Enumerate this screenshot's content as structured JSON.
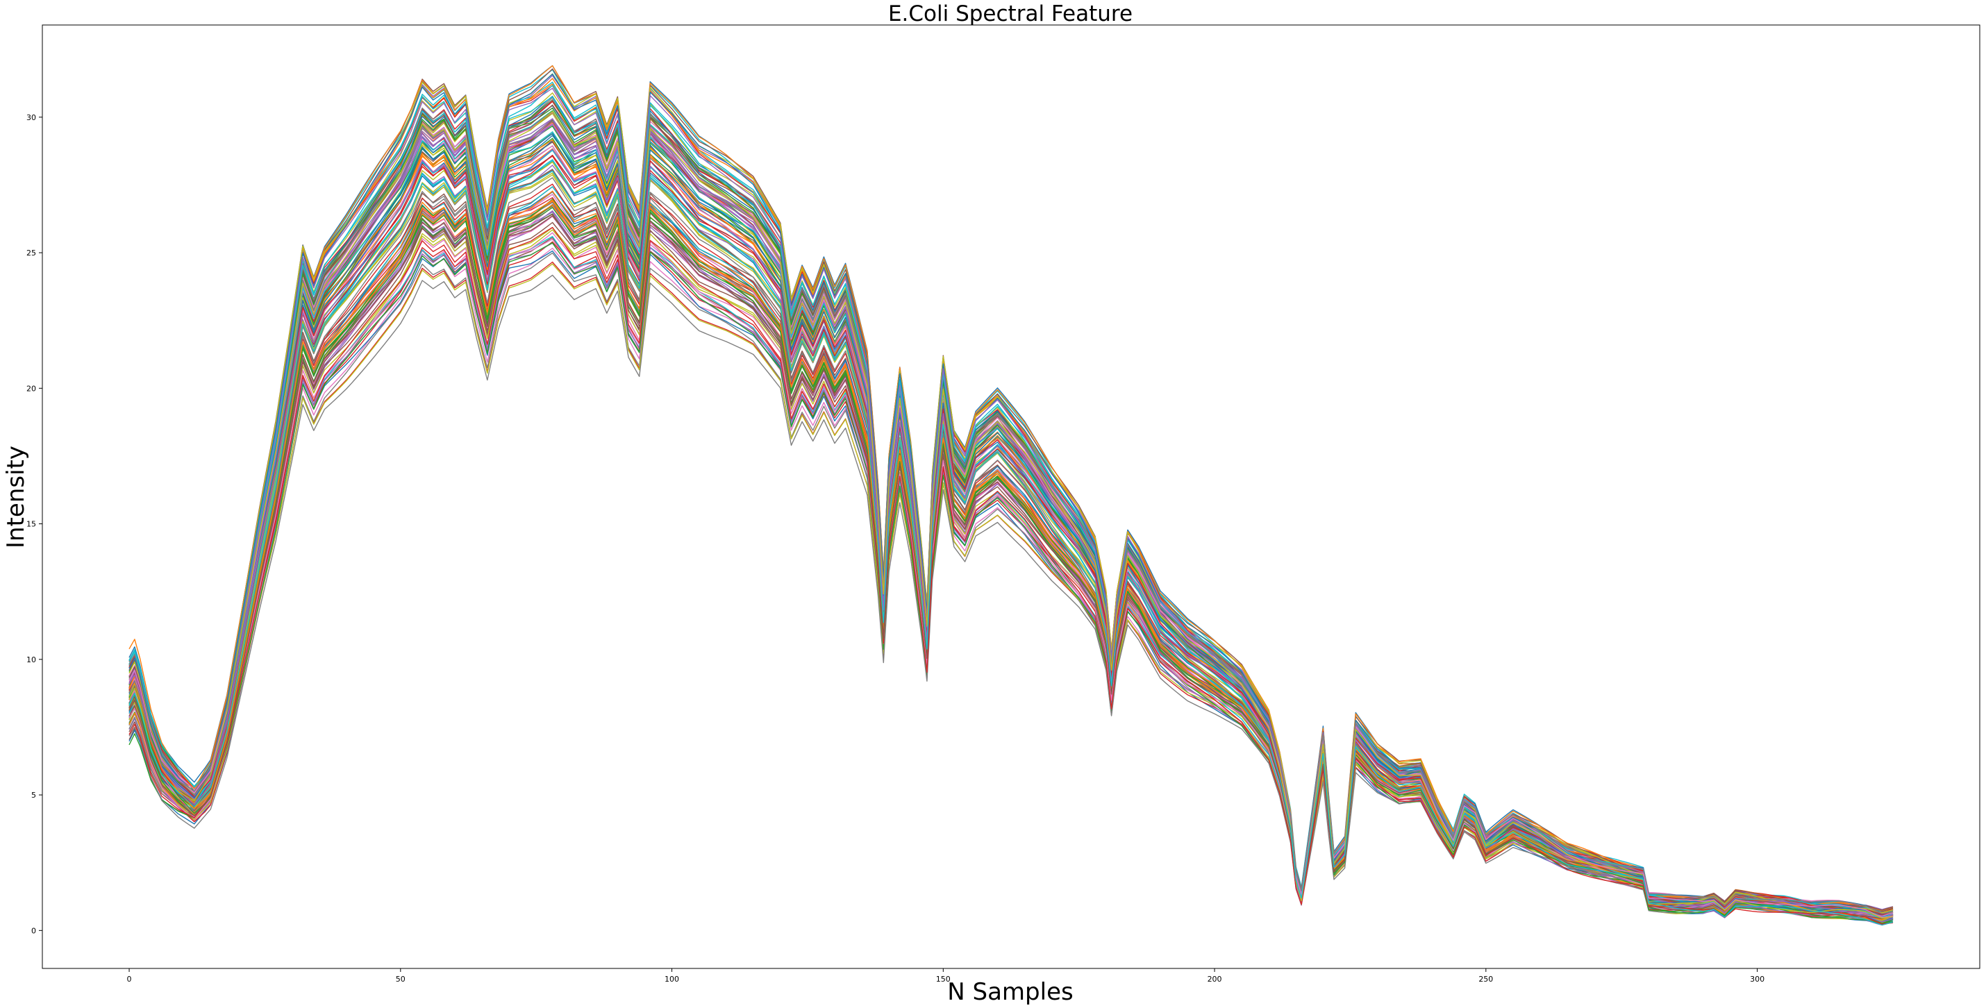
{
  "chart_data": {
    "type": "line",
    "title": "E.Coli Spectral Feature",
    "xlabel": "N Samples",
    "ylabel": "Intensity",
    "xlim": [
      -16,
      341
    ],
    "ylim": [
      -1.4,
      33.4
    ],
    "xticks": [
      0,
      50,
      100,
      150,
      200,
      250,
      300
    ],
    "yticks": [
      0,
      5,
      10,
      15,
      20,
      25,
      30
    ],
    "grid": false,
    "legend": "none",
    "n_points_per_series": 326,
    "x_range": [
      0,
      325
    ],
    "colors": [
      "#1f77b4",
      "#ff7f0e",
      "#2ca02c",
      "#d62728",
      "#9467bd",
      "#8c564b",
      "#e377c2",
      "#7f7f7f",
      "#bcbd22",
      "#17becf"
    ],
    "reference_curve": {
      "x": [
        0,
        1,
        2,
        4,
        6,
        9,
        12,
        15,
        18,
        21,
        24,
        27,
        30,
        32,
        34,
        36,
        40,
        45,
        50,
        52,
        54,
        56,
        58,
        60,
        62,
        64,
        66,
        68,
        70,
        74,
        78,
        82,
        86,
        88,
        90,
        92,
        94,
        96,
        100,
        105,
        110,
        115,
        120,
        122,
        124,
        126,
        128,
        130,
        132,
        134,
        136,
        138,
        139,
        140,
        142,
        144,
        146,
        147,
        148,
        150,
        152,
        154,
        156,
        160,
        165,
        170,
        175,
        178,
        180,
        181,
        182,
        184,
        186,
        190,
        195,
        200,
        205,
        210,
        212,
        214,
        215,
        216,
        218,
        220,
        221,
        222,
        224,
        226,
        230,
        234,
        238,
        241,
        244,
        246,
        248,
        250,
        255,
        260,
        265,
        270,
        275,
        279,
        280,
        285,
        290,
        292,
        294,
        296,
        300,
        305,
        310,
        315,
        320,
        323,
        325
      ],
      "y": [
        8.8,
        9.2,
        8.6,
        7.0,
        6.0,
        5.3,
        4.8,
        5.6,
        7.8,
        11.0,
        14.2,
        17.2,
        20.8,
        23.3,
        22.2,
        23.2,
        24.2,
        25.6,
        27.0,
        27.8,
        28.8,
        28.4,
        28.7,
        28.0,
        28.4,
        26.3,
        24.5,
        26.8,
        28.3,
        28.6,
        29.2,
        28.0,
        28.4,
        27.3,
        28.3,
        25.4,
        24.6,
        28.8,
        28.0,
        26.8,
        26.2,
        25.5,
        24.0,
        21.5,
        22.6,
        21.8,
        22.8,
        21.8,
        22.5,
        21.0,
        19.5,
        15.0,
        12.0,
        16.0,
        19.0,
        16.5,
        13.0,
        11.0,
        15.5,
        19.5,
        17.0,
        16.4,
        17.6,
        18.3,
        17.1,
        15.6,
        14.3,
        13.3,
        11.5,
        9.5,
        11.5,
        13.6,
        13.0,
        11.4,
        10.4,
        9.7,
        8.9,
        7.4,
        6.0,
        4.0,
        2.0,
        1.3,
        4.0,
        6.8,
        4.5,
        2.5,
        3.0,
        7.2,
        6.2,
        5.6,
        5.7,
        4.4,
        3.3,
        4.5,
        4.2,
        3.2,
        3.9,
        3.4,
        2.8,
        2.5,
        2.2,
        2.0,
        1.1,
        1.0,
        1.0,
        1.1,
        0.8,
        1.2,
        1.1,
        1.0,
        0.8,
        0.8,
        0.7,
        0.5,
        0.6
      ],
      "note": ""
    },
    "series_count": 120,
    "series_spread": {
      "scale_min": 0.82,
      "scale_max": 1.09
    }
  }
}
